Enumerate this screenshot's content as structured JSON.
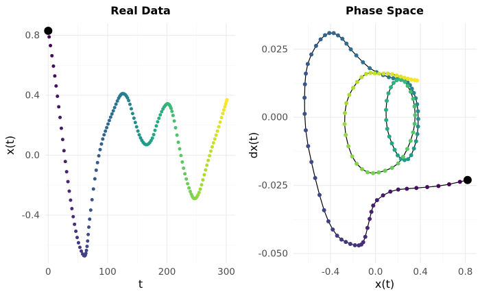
{
  "chart_data": [
    {
      "type": "scatter",
      "title": "Real Data",
      "xlabel": "t",
      "ylabel": "x(t)",
      "xlim": [
        -5,
        315
      ],
      "ylim": [
        -0.72,
        0.88
      ],
      "x_ticks": [
        0,
        100,
        200,
        300
      ],
      "x_tick_labels": [
        "0",
        "100",
        "200",
        "300"
      ],
      "y_ticks": [
        0.8,
        0.4,
        0.0,
        -0.4
      ],
      "y_tick_labels": [
        "0.8",
        "0.4",
        "0.0",
        "-0.4"
      ],
      "grid": true,
      "colormap": "viridis",
      "start_marker": {
        "x": 0,
        "y": 0.83,
        "color": "#000000"
      },
      "keypoints": [
        [
          0,
          0.83
        ],
        [
          10,
          0.56
        ],
        [
          20,
          0.25
        ],
        [
          30,
          -0.08
        ],
        [
          40,
          -0.36
        ],
        [
          50,
          -0.57
        ],
        [
          60,
          -0.67
        ],
        [
          65,
          -0.62
        ],
        [
          70,
          -0.42
        ],
        [
          80,
          -0.12
        ],
        [
          90,
          0.08
        ],
        [
          100,
          0.2
        ],
        [
          110,
          0.3
        ],
        [
          120,
          0.39
        ],
        [
          127,
          0.41
        ],
        [
          135,
          0.37
        ],
        [
          145,
          0.24
        ],
        [
          155,
          0.12
        ],
        [
          165,
          0.07
        ],
        [
          175,
          0.11
        ],
        [
          185,
          0.23
        ],
        [
          195,
          0.32
        ],
        [
          203,
          0.34
        ],
        [
          210,
          0.27
        ],
        [
          220,
          0.07
        ],
        [
          230,
          -0.12
        ],
        [
          240,
          -0.25
        ],
        [
          247,
          -0.29
        ],
        [
          255,
          -0.24
        ],
        [
          265,
          -0.1
        ],
        [
          275,
          0.04
        ],
        [
          285,
          0.16
        ],
        [
          295,
          0.29
        ],
        [
          301,
          0.37
        ]
      ]
    },
    {
      "type": "scatter",
      "title": "Phase Space",
      "xlabel": "x(t)",
      "ylabel": "dx(t)",
      "xlim": [
        -0.73,
        0.9
      ],
      "ylim": [
        -0.0535,
        0.0345
      ],
      "x_ticks": [
        -0.4,
        0.0,
        0.4,
        0.8
      ],
      "x_tick_labels": [
        "-0.4",
        "0.0",
        "0.4",
        "0.8"
      ],
      "y_ticks": [
        0.025,
        0.0,
        -0.025,
        -0.05
      ],
      "y_tick_labels": [
        "0.025",
        "0.000",
        "-0.025",
        "-0.050"
      ],
      "grid": true,
      "colormap": "viridis",
      "start_marker": {
        "x": 0.82,
        "y": -0.023,
        "color": "#000000"
      },
      "keypoints": [
        [
          0.82,
          -0.023
        ],
        [
          0.6,
          -0.025
        ],
        [
          0.35,
          -0.026
        ],
        [
          0.15,
          -0.027
        ],
        [
          0.0,
          -0.031
        ],
        [
          -0.05,
          -0.037
        ],
        [
          -0.1,
          -0.045
        ],
        [
          -0.15,
          -0.047
        ],
        [
          -0.25,
          -0.046
        ],
        [
          -0.35,
          -0.043
        ],
        [
          -0.45,
          -0.035
        ],
        [
          -0.55,
          -0.02
        ],
        [
          -0.62,
          -0.005
        ],
        [
          -0.63,
          0.01
        ],
        [
          -0.6,
          0.02
        ],
        [
          -0.5,
          0.028
        ],
        [
          -0.4,
          0.031
        ],
        [
          -0.3,
          0.029
        ],
        [
          -0.2,
          0.024
        ],
        [
          -0.05,
          0.018
        ],
        [
          0.1,
          0.015
        ],
        [
          0.2,
          0.014
        ],
        [
          0.28,
          0.013
        ],
        [
          0.33,
          0.01
        ],
        [
          0.37,
          0.005
        ],
        [
          0.38,
          -0.002
        ],
        [
          0.36,
          -0.009
        ],
        [
          0.3,
          -0.015
        ],
        [
          0.22,
          -0.015
        ],
        [
          0.15,
          -0.01
        ],
        [
          0.1,
          -0.003
        ],
        [
          0.1,
          0.006
        ],
        [
          0.15,
          0.012
        ],
        [
          0.22,
          0.014
        ],
        [
          0.28,
          0.012
        ],
        [
          0.34,
          0.006
        ],
        [
          0.35,
          -0.002
        ],
        [
          0.3,
          -0.01
        ],
        [
          0.2,
          -0.017
        ],
        [
          0.05,
          -0.02
        ],
        [
          -0.08,
          -0.02
        ],
        [
          -0.2,
          -0.015
        ],
        [
          -0.27,
          -0.005
        ],
        [
          -0.26,
          0.005
        ],
        [
          -0.18,
          0.012
        ],
        [
          -0.08,
          0.016
        ],
        [
          0.02,
          0.016
        ],
        [
          0.12,
          0.016
        ],
        [
          0.22,
          0.015
        ],
        [
          0.3,
          0.014
        ],
        [
          0.37,
          0.0135
        ]
      ]
    }
  ]
}
